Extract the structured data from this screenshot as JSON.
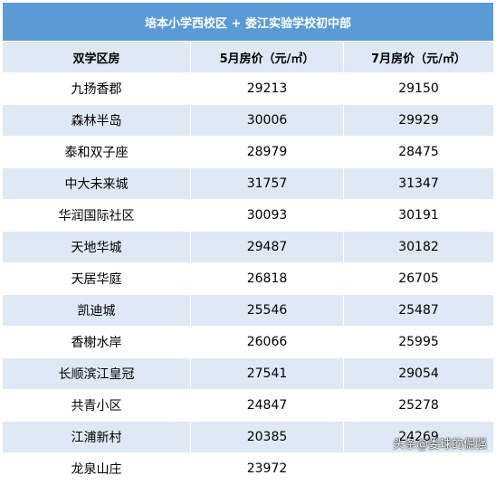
{
  "title": "培本小学西校区 + 娄江实验学校初中部",
  "columns": [
    "双学区房",
    "5月房价（元/㎡）",
    "7月房价（元/㎡）"
  ],
  "rows": [
    {
      "name": "九扬香郡",
      "may": "29213",
      "jul": "29150"
    },
    {
      "name": "森林半岛",
      "may": "30006",
      "jul": "29929"
    },
    {
      "name": "泰和双子座",
      "may": "28979",
      "jul": "28475"
    },
    {
      "name": "中大未来城",
      "may": "31757",
      "jul": "31347"
    },
    {
      "name": "华润国际社区",
      "may": "30093",
      "jul": "30191"
    },
    {
      "name": "天地华城",
      "may": "29487",
      "jul": "30182"
    },
    {
      "name": "天居华庭",
      "may": "26818",
      "jul": "26705"
    },
    {
      "name": "凯迪城",
      "may": "25546",
      "jul": "25487"
    },
    {
      "name": "香榭水岸",
      "may": "26066",
      "jul": "25995"
    },
    {
      "name": "长顺滨江皇冠",
      "may": "27541",
      "jul": "29054"
    },
    {
      "name": "共青小区",
      "may": "24847",
      "jul": "25278"
    },
    {
      "name": "江浦新村",
      "may": "20385",
      "jul": "24269"
    },
    {
      "name": "龙泉山庄",
      "may": "23972",
      "jul": ""
    }
  ],
  "watermark": "头条@娄球的倔强",
  "colors": {
    "title_bg": "#5b9bd5",
    "band_bg": "#dfe9f5"
  }
}
